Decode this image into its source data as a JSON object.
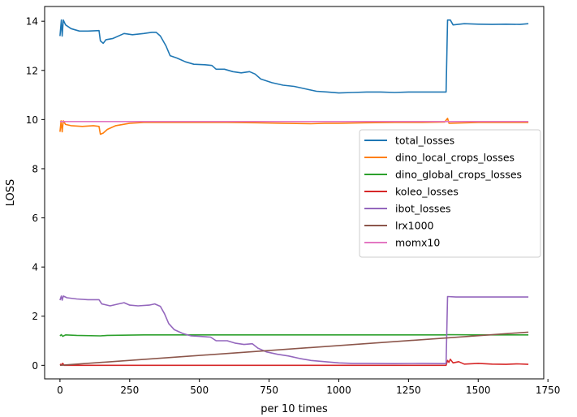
{
  "chart_data": {
    "type": "line",
    "title": "",
    "xlabel": "per 10 times",
    "ylabel": "LOSS",
    "xlim": [
      -55,
      1735
    ],
    "ylim": [
      -0.55,
      14.6
    ],
    "xticks": [
      0,
      250,
      500,
      750,
      1000,
      1250,
      1500,
      1750
    ],
    "yticks": [
      0,
      2,
      4,
      6,
      8,
      10,
      12,
      14
    ],
    "xtick_labels": [
      "0",
      "250",
      "500",
      "750",
      "1000",
      "1250",
      "1500",
      "1750"
    ],
    "ytick_labels": [
      "0",
      "2",
      "4",
      "6",
      "8",
      "10",
      "12",
      "14"
    ],
    "grid": false,
    "legend_position": "center-right",
    "series": [
      {
        "name": "total_losses",
        "color": "#1f77b4",
        "points": [
          [
            0,
            13.4
          ],
          [
            5,
            14.05
          ],
          [
            8,
            13.4
          ],
          [
            12,
            14.05
          ],
          [
            20,
            13.85
          ],
          [
            40,
            13.7
          ],
          [
            70,
            13.6
          ],
          [
            100,
            13.6
          ],
          [
            140,
            13.62
          ],
          [
            145,
            13.2
          ],
          [
            155,
            13.1
          ],
          [
            165,
            13.25
          ],
          [
            190,
            13.3
          ],
          [
            230,
            13.5
          ],
          [
            260,
            13.45
          ],
          [
            300,
            13.5
          ],
          [
            330,
            13.55
          ],
          [
            345,
            13.55
          ],
          [
            360,
            13.4
          ],
          [
            380,
            13.0
          ],
          [
            395,
            12.6
          ],
          [
            420,
            12.5
          ],
          [
            450,
            12.35
          ],
          [
            480,
            12.25
          ],
          [
            520,
            12.23
          ],
          [
            545,
            12.2
          ],
          [
            560,
            12.05
          ],
          [
            590,
            12.05
          ],
          [
            620,
            11.95
          ],
          [
            650,
            11.9
          ],
          [
            680,
            11.95
          ],
          [
            700,
            11.85
          ],
          [
            720,
            11.65
          ],
          [
            760,
            11.5
          ],
          [
            800,
            11.4
          ],
          [
            840,
            11.35
          ],
          [
            880,
            11.25
          ],
          [
            920,
            11.15
          ],
          [
            960,
            11.12
          ],
          [
            1000,
            11.08
          ],
          [
            1050,
            11.1
          ],
          [
            1100,
            11.12
          ],
          [
            1150,
            11.12
          ],
          [
            1200,
            11.1
          ],
          [
            1250,
            11.12
          ],
          [
            1300,
            11.12
          ],
          [
            1350,
            11.12
          ],
          [
            1385,
            11.12
          ],
          [
            1390,
            14.05
          ],
          [
            1400,
            14.05
          ],
          [
            1410,
            13.85
          ],
          [
            1450,
            13.9
          ],
          [
            1500,
            13.88
          ],
          [
            1550,
            13.87
          ],
          [
            1600,
            13.88
          ],
          [
            1650,
            13.87
          ],
          [
            1680,
            13.9
          ]
        ]
      },
      {
        "name": "dino_local_crops_losses",
        "color": "#ff7f0e",
        "points": [
          [
            0,
            9.5
          ],
          [
            4,
            9.95
          ],
          [
            8,
            9.5
          ],
          [
            12,
            9.95
          ],
          [
            20,
            9.8
          ],
          [
            40,
            9.75
          ],
          [
            80,
            9.72
          ],
          [
            120,
            9.75
          ],
          [
            140,
            9.72
          ],
          [
            145,
            9.4
          ],
          [
            155,
            9.45
          ],
          [
            170,
            9.6
          ],
          [
            200,
            9.75
          ],
          [
            250,
            9.85
          ],
          [
            300,
            9.88
          ],
          [
            400,
            9.88
          ],
          [
            500,
            9.88
          ],
          [
            600,
            9.88
          ],
          [
            700,
            9.87
          ],
          [
            800,
            9.85
          ],
          [
            900,
            9.83
          ],
          [
            950,
            9.85
          ],
          [
            1000,
            9.85
          ],
          [
            1100,
            9.87
          ],
          [
            1200,
            9.88
          ],
          [
            1300,
            9.88
          ],
          [
            1380,
            9.9
          ],
          [
            1390,
            10.05
          ],
          [
            1395,
            9.85
          ],
          [
            1500,
            9.88
          ],
          [
            1600,
            9.88
          ],
          [
            1680,
            9.88
          ]
        ]
      },
      {
        "name": "dino_global_crops_losses",
        "color": "#2ca02c",
        "points": [
          [
            0,
            1.2
          ],
          [
            5,
            1.25
          ],
          [
            10,
            1.18
          ],
          [
            20,
            1.24
          ],
          [
            60,
            1.22
          ],
          [
            145,
            1.2
          ],
          [
            170,
            1.22
          ],
          [
            300,
            1.24
          ],
          [
            600,
            1.24
          ],
          [
            900,
            1.24
          ],
          [
            1200,
            1.24
          ],
          [
            1385,
            1.24
          ],
          [
            1390,
            1.25
          ],
          [
            1500,
            1.24
          ],
          [
            1680,
            1.24
          ]
        ]
      },
      {
        "name": "koleo_losses",
        "color": "#d62728",
        "points": [
          [
            0,
            0.05
          ],
          [
            5,
            0.02
          ],
          [
            10,
            0.08
          ],
          [
            15,
            0.0
          ],
          [
            60,
            0.0
          ],
          [
            200,
            0.0
          ],
          [
            600,
            0.0
          ],
          [
            1000,
            0.0
          ],
          [
            1385,
            0.0
          ],
          [
            1390,
            0.2
          ],
          [
            1395,
            0.12
          ],
          [
            1400,
            0.25
          ],
          [
            1410,
            0.1
          ],
          [
            1430,
            0.15
          ],
          [
            1450,
            0.05
          ],
          [
            1500,
            0.08
          ],
          [
            1550,
            0.05
          ],
          [
            1600,
            0.04
          ],
          [
            1640,
            0.06
          ],
          [
            1680,
            0.04
          ]
        ]
      },
      {
        "name": "ibot_losses",
        "color": "#9467bd",
        "points": [
          [
            0,
            2.65
          ],
          [
            5,
            2.82
          ],
          [
            8,
            2.65
          ],
          [
            12,
            2.82
          ],
          [
            25,
            2.75
          ],
          [
            60,
            2.7
          ],
          [
            100,
            2.67
          ],
          [
            140,
            2.67
          ],
          [
            150,
            2.5
          ],
          [
            180,
            2.42
          ],
          [
            210,
            2.5
          ],
          [
            230,
            2.55
          ],
          [
            250,
            2.45
          ],
          [
            280,
            2.42
          ],
          [
            320,
            2.45
          ],
          [
            340,
            2.5
          ],
          [
            360,
            2.4
          ],
          [
            375,
            2.1
          ],
          [
            390,
            1.7
          ],
          [
            410,
            1.45
          ],
          [
            440,
            1.3
          ],
          [
            470,
            1.2
          ],
          [
            500,
            1.18
          ],
          [
            540,
            1.15
          ],
          [
            560,
            1.0
          ],
          [
            600,
            1.0
          ],
          [
            630,
            0.9
          ],
          [
            660,
            0.85
          ],
          [
            690,
            0.88
          ],
          [
            710,
            0.7
          ],
          [
            740,
            0.55
          ],
          [
            780,
            0.45
          ],
          [
            820,
            0.38
          ],
          [
            860,
            0.28
          ],
          [
            900,
            0.2
          ],
          [
            950,
            0.15
          ],
          [
            1000,
            0.1
          ],
          [
            1050,
            0.08
          ],
          [
            1100,
            0.08
          ],
          [
            1200,
            0.07
          ],
          [
            1300,
            0.08
          ],
          [
            1385,
            0.07
          ],
          [
            1390,
            2.8
          ],
          [
            1420,
            2.78
          ],
          [
            1500,
            2.78
          ],
          [
            1600,
            2.78
          ],
          [
            1680,
            2.78
          ]
        ]
      },
      {
        "name": "lrx1000",
        "color": "#8c564b",
        "points": [
          [
            0,
            0.0
          ],
          [
            1680,
            1.35
          ]
        ]
      },
      {
        "name": "momx10",
        "color": "#e377c2",
        "points": [
          [
            0,
            9.92
          ],
          [
            1680,
            9.92
          ]
        ]
      }
    ]
  }
}
